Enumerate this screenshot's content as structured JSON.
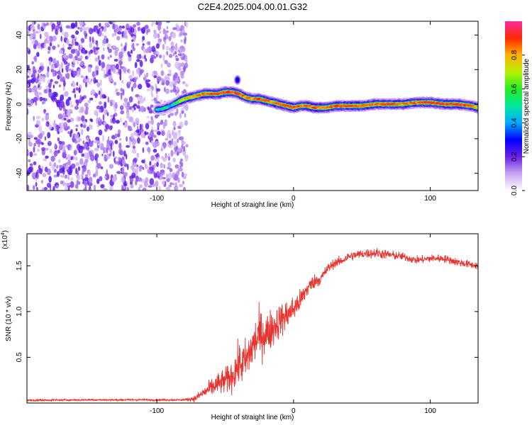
{
  "title": "C2E4.2025.004.00.01.G32",
  "chart_data": [
    {
      "type": "heatmap",
      "name": "spectrogram",
      "xlabel": "Height of straight line (km)",
      "ylabel": "Frequency (Hz)",
      "xlim": [
        -195,
        135
      ],
      "ylim": [
        -50,
        48
      ],
      "xticks": [
        -100,
        0,
        100
      ],
      "xtick_labels": [
        "-100",
        "0",
        "100"
      ],
      "yticks": [
        -40,
        -20,
        0,
        20,
        40
      ],
      "ytick_labels": [
        "-40",
        "-20",
        "0",
        "20",
        "40"
      ],
      "noise_region_x": [
        -195,
        -78
      ],
      "ridge": {
        "x": [
          -100,
          -97,
          -93,
          -90,
          -85,
          -80,
          -75,
          -70,
          -65,
          -60,
          -55,
          -50,
          -45,
          -40,
          -35,
          -30,
          -25,
          -20,
          -15,
          -10,
          -5,
          0,
          5,
          10,
          15,
          20,
          25,
          30,
          40,
          50,
          60,
          70,
          80,
          90,
          100,
          110,
          120,
          130,
          135
        ],
        "y": [
          -3,
          -3,
          -2,
          -1,
          1,
          3,
          4,
          5,
          6,
          6,
          6,
          7,
          7,
          6,
          4,
          3,
          3,
          2,
          1,
          0,
          -1,
          -2,
          -1,
          -1,
          -2,
          -2,
          -2,
          -1,
          -1,
          -1,
          0,
          0,
          0,
          1,
          1,
          0,
          0,
          -1,
          -2
        ],
        "amplitude": [
          0.5,
          0.45,
          0.55,
          0.4,
          0.6,
          0.75,
          0.8,
          0.85,
          0.9,
          0.85,
          0.9,
          0.9,
          0.9,
          0.85,
          0.8,
          0.8,
          0.9,
          0.85,
          0.8,
          0.9,
          0.85,
          0.9,
          0.85,
          0.85,
          0.9,
          0.85,
          0.85,
          0.85,
          0.9,
          0.85,
          0.85,
          0.9,
          0.85,
          0.85,
          0.9,
          0.9,
          0.9,
          0.85,
          0.8
        ]
      },
      "blob": {
        "x": -41,
        "y": 14,
        "amplitude": 0.3
      },
      "colorbar": {
        "label": "Normalized spectral amplitude",
        "range": [
          0,
          1
        ],
        "ticks": [
          0.0,
          0.2,
          0.4,
          0.6,
          0.8
        ],
        "tick_labels": [
          "0.0",
          "0.2",
          "0.4",
          "0.6",
          "0.8"
        ]
      }
    },
    {
      "type": "line",
      "name": "snr",
      "xlabel": "Height of straight line (km)",
      "ylabel": "SNR (10 * v/v)",
      "multiplier": "(x10",
      "multiplier_exp": "4",
      "multiplier_close": ")",
      "xlim": [
        -195,
        135
      ],
      "ylim": [
        0,
        18500
      ],
      "xticks": [
        -100,
        0,
        100
      ],
      "xtick_labels": [
        "-100",
        "0",
        "100"
      ],
      "yticks": [
        5000,
        10000,
        15000
      ],
      "ytick_labels": [
        "0.5",
        "1.0",
        "1.5"
      ],
      "color": "#e8322d",
      "x": [
        -195,
        -150,
        -100,
        -80,
        -72,
        -65,
        -60,
        -55,
        -50,
        -45,
        -40,
        -35,
        -30,
        -25,
        -20,
        -15,
        -10,
        -5,
        0,
        5,
        10,
        15,
        20,
        25,
        30,
        35,
        40,
        50,
        60,
        70,
        80,
        90,
        100,
        110,
        120,
        130,
        135
      ],
      "y": [
        300,
        350,
        350,
        350,
        500,
        1200,
        1700,
        2100,
        2400,
        3000,
        4200,
        4500,
        6200,
        7500,
        7500,
        8300,
        9000,
        9600,
        10300,
        11200,
        12500,
        13300,
        13600,
        14700,
        15300,
        15500,
        16000,
        16300,
        16400,
        16200,
        16000,
        15600,
        15800,
        15800,
        15400,
        15100,
        15000
      ],
      "noise": [
        150,
        150,
        150,
        150,
        500,
        900,
        1400,
        1700,
        2000,
        2400,
        3200,
        3400,
        3700,
        3600,
        3300,
        3000,
        2600,
        2400,
        2000,
        1700,
        1400,
        1100,
        1000,
        800,
        700,
        700,
        700,
        700,
        800,
        700,
        600,
        600,
        600,
        600,
        600,
        600,
        600
      ]
    }
  ]
}
